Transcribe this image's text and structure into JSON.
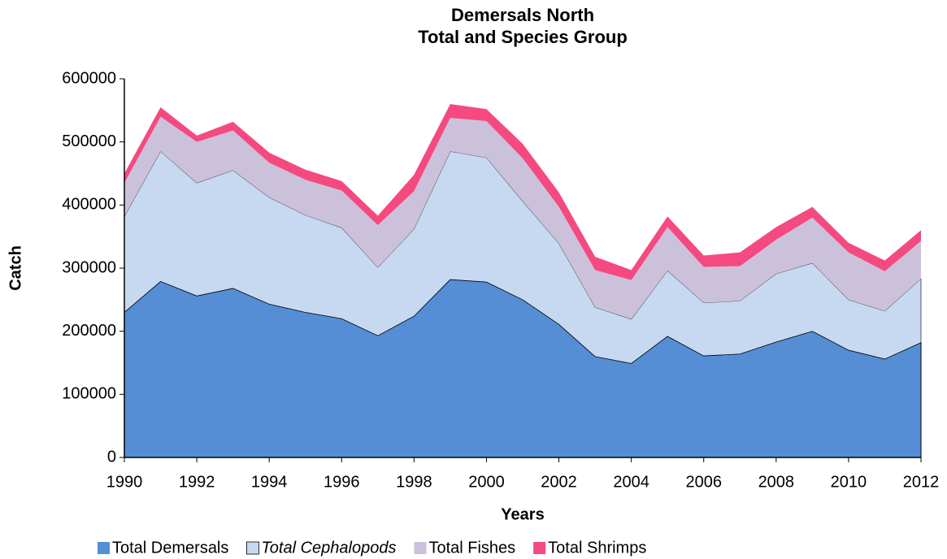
{
  "chart_data": {
    "type": "stacked_area",
    "title": "Demersals North",
    "subtitle": "Total and Species Group",
    "xlabel": "Years",
    "ylabel": "Catch",
    "x": [
      1990,
      1991,
      1992,
      1993,
      1994,
      1995,
      1996,
      1997,
      1998,
      1999,
      2000,
      2001,
      2002,
      2003,
      2004,
      2005,
      2006,
      2007,
      2008,
      2009,
      2010,
      2011,
      2012
    ],
    "xlim": [
      1990,
      2012
    ],
    "xticks": [
      1990,
      1992,
      1994,
      1996,
      1998,
      2000,
      2002,
      2004,
      2006,
      2008,
      2010,
      2012
    ],
    "ylim": [
      0,
      600000
    ],
    "yticks": [
      0,
      100000,
      200000,
      300000,
      400000,
      500000,
      600000
    ],
    "legend": "bottom",
    "series": [
      {
        "name": "Total Demersals",
        "color": "#558ed5",
        "values": [
          230000,
          279000,
          256000,
          268000,
          243000,
          230000,
          220000,
          193000,
          224000,
          282000,
          278000,
          250000,
          211000,
          160000,
          149000,
          192000,
          161000,
          164000,
          183000,
          200000,
          170000,
          156000,
          182000
        ]
      },
      {
        "name": "Total Cephalopods",
        "color": "#c6d9f1",
        "font_style": "italic",
        "values": [
          152000,
          206000,
          179000,
          187000,
          169000,
          154000,
          144000,
          108000,
          138000,
          203000,
          197000,
          156000,
          128000,
          78000,
          70000,
          104000,
          84000,
          84000,
          108000,
          108000,
          80000,
          76000,
          101000
        ]
      },
      {
        "name": "Total Fishes",
        "color": "#ccc1da",
        "values": [
          53000,
          55000,
          65000,
          63000,
          55000,
          56000,
          59000,
          67000,
          60000,
          53000,
          58000,
          68000,
          58000,
          59000,
          62000,
          69000,
          57000,
          55000,
          54000,
          72000,
          75000,
          63000,
          60000
        ]
      },
      {
        "name": "Total Shrimps",
        "color": "#f44a7f",
        "values": [
          15000,
          15000,
          10000,
          14000,
          16000,
          16000,
          15000,
          15000,
          26000,
          22000,
          19000,
          23000,
          23000,
          21000,
          16000,
          17000,
          18000,
          22000,
          20000,
          17000,
          15000,
          17000,
          17000
        ]
      }
    ]
  }
}
